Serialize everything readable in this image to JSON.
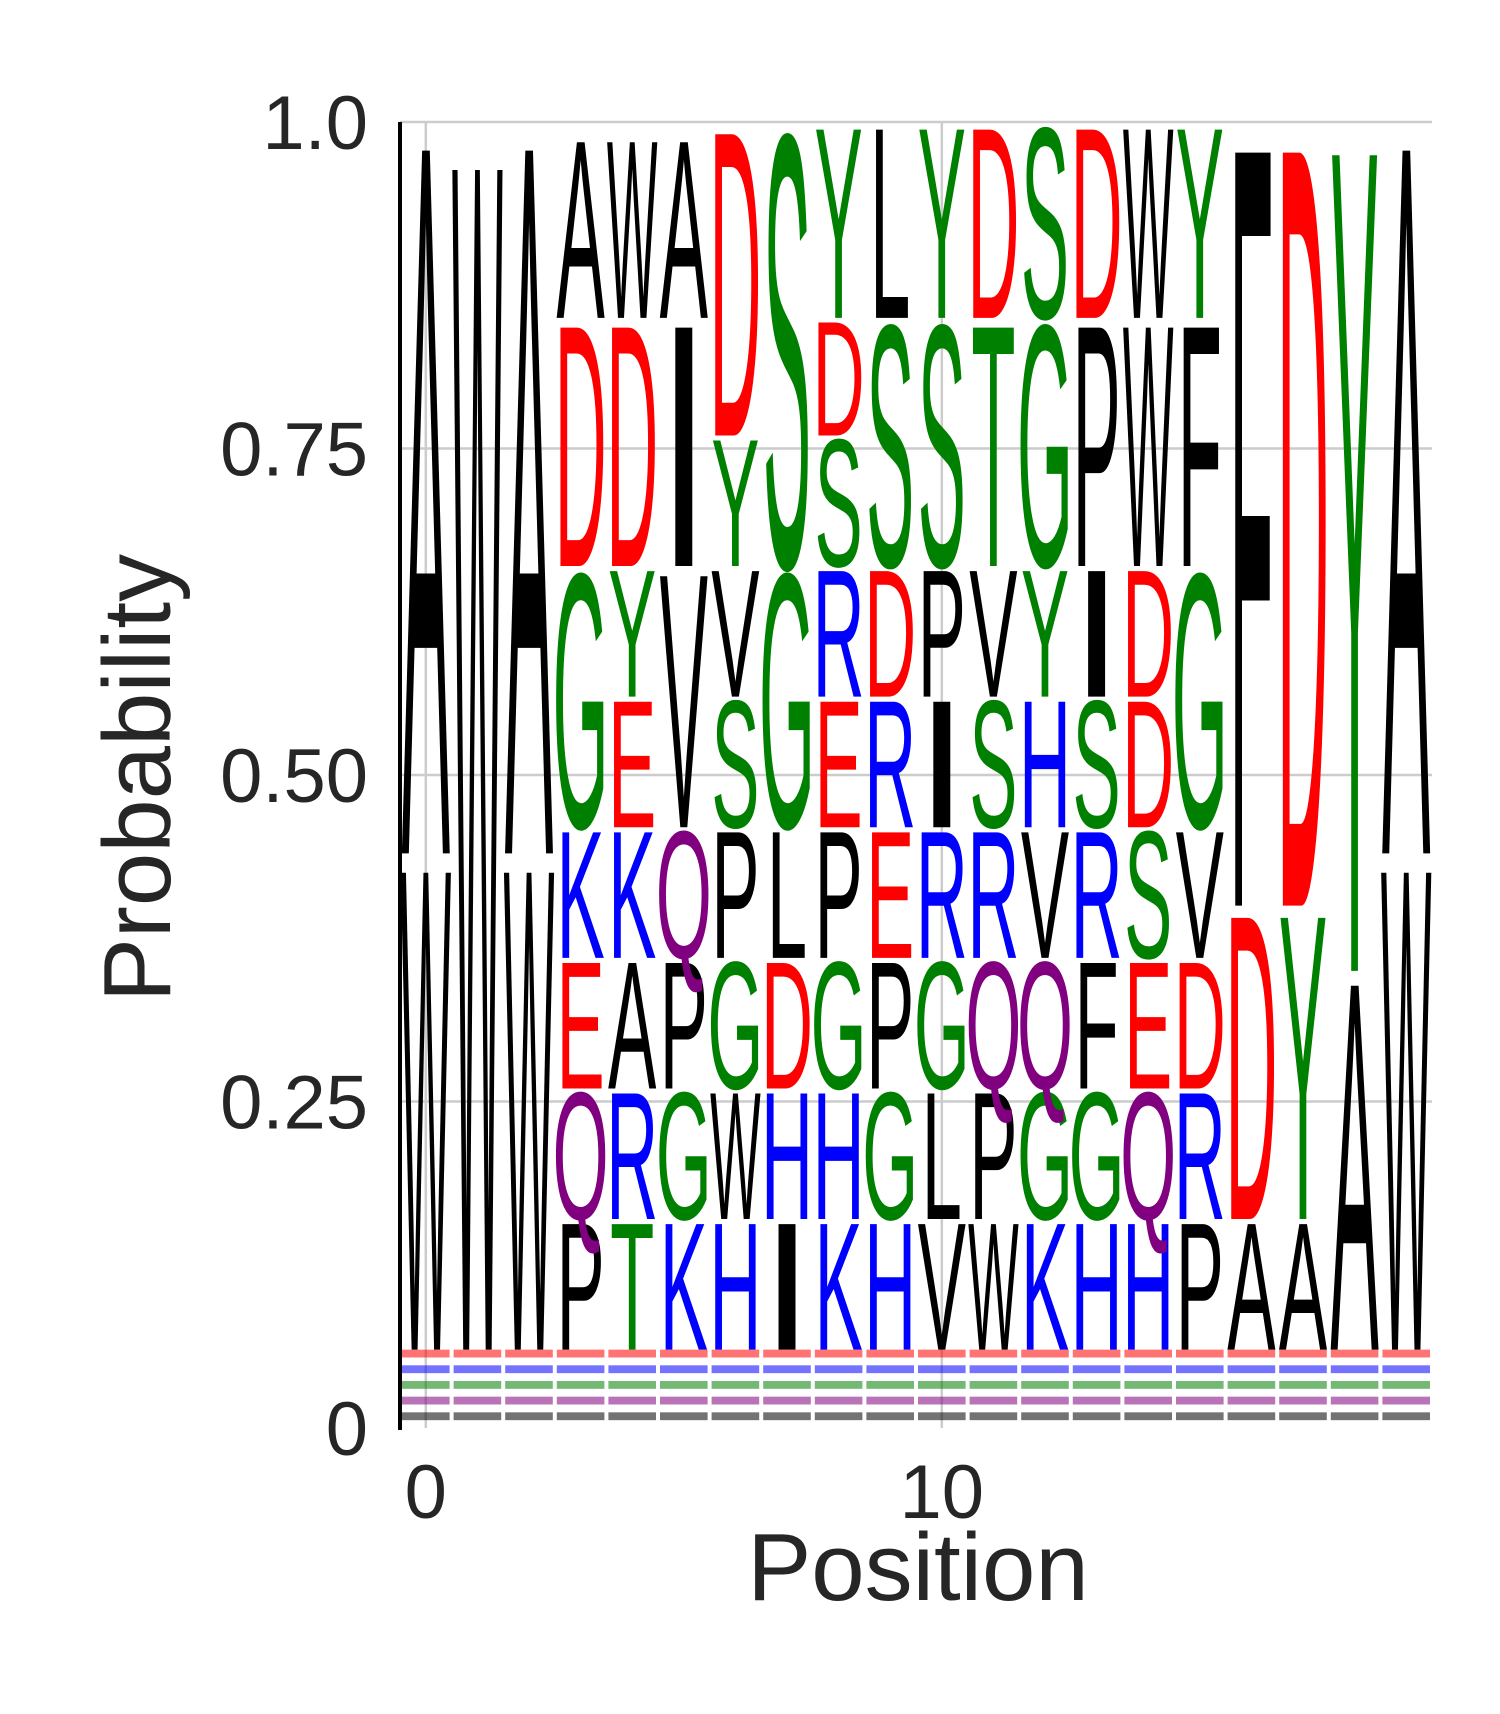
{
  "chart_data": {
    "type": "sequence_logo",
    "xlabel": "Position",
    "ylabel": "Probability",
    "ylim": [
      0,
      1
    ],
    "xlim": [
      -0.5,
      19.5
    ],
    "x_ticks": [
      0,
      10
    ],
    "y_ticks": [
      {
        "value": 0,
        "label": "0"
      },
      {
        "value": 0.25,
        "label": "0.25"
      },
      {
        "value": 0.5,
        "label": "0.50"
      },
      {
        "value": 0.75,
        "label": "0.75"
      },
      {
        "value": 1.0,
        "label": "1.0"
      }
    ],
    "grid": true,
    "colors": {
      "black": "#000000",
      "red": "#ff0000",
      "green": "#008000",
      "blue": "#0000ff",
      "purple": "#800080",
      "grid": "#cccccc",
      "axis": "#000000"
    },
    "positions": [
      {
        "x": 0,
        "stack": [
          [
            "W",
            0.38,
            "black"
          ],
          [
            "A",
            0.56,
            "black"
          ]
        ]
      },
      {
        "x": 1,
        "stack": [
          [
            "W",
            0.94,
            "black"
          ]
        ]
      },
      {
        "x": 2,
        "stack": [
          [
            "W",
            0.38,
            "black"
          ],
          [
            "A",
            0.56,
            "black"
          ]
        ]
      },
      {
        "x": 3,
        "stack": [
          [
            "P",
            0.1,
            "black"
          ],
          [
            "Q",
            0.1,
            "purple"
          ],
          [
            "E",
            0.1,
            "red"
          ],
          [
            "K",
            0.1,
            "blue"
          ],
          [
            "G",
            0.2,
            "green"
          ],
          [
            "D",
            0.19,
            "red"
          ],
          [
            "A",
            0.14,
            "black"
          ]
        ]
      },
      {
        "x": 4,
        "stack": [
          [
            "T",
            0.1,
            "green"
          ],
          [
            "R",
            0.1,
            "blue"
          ],
          [
            "A",
            0.1,
            "black"
          ],
          [
            "K",
            0.1,
            "blue"
          ],
          [
            "E",
            0.1,
            "red"
          ],
          [
            "Y",
            0.1,
            "green"
          ],
          [
            "D",
            0.19,
            "red"
          ],
          [
            "W",
            0.14,
            "black"
          ]
        ]
      },
      {
        "x": 5,
        "stack": [
          [
            "K",
            0.1,
            "blue"
          ],
          [
            "G",
            0.1,
            "green"
          ],
          [
            "P",
            0.1,
            "black"
          ],
          [
            "Q",
            0.1,
            "purple"
          ],
          [
            "V",
            0.2,
            "black"
          ],
          [
            "I",
            0.19,
            "black"
          ],
          [
            "A",
            0.14,
            "black"
          ]
        ]
      },
      {
        "x": 6,
        "stack": [
          [
            "H",
            0.1,
            "blue"
          ],
          [
            "W",
            0.1,
            "black"
          ],
          [
            "G",
            0.1,
            "green"
          ],
          [
            "P",
            0.1,
            "black"
          ],
          [
            "S",
            0.1,
            "green"
          ],
          [
            "V",
            0.1,
            "black"
          ],
          [
            "Y",
            0.1,
            "green"
          ],
          [
            "D",
            0.24,
            "red"
          ]
        ]
      },
      {
        "x": 7,
        "stack": [
          [
            "I",
            0.1,
            "black"
          ],
          [
            "H",
            0.1,
            "blue"
          ],
          [
            "D",
            0.1,
            "red"
          ],
          [
            "L",
            0.1,
            "black"
          ],
          [
            "G",
            0.2,
            "green"
          ],
          [
            "S",
            0.34,
            "green"
          ]
        ]
      },
      {
        "x": 8,
        "stack": [
          [
            "K",
            0.1,
            "blue"
          ],
          [
            "H",
            0.1,
            "blue"
          ],
          [
            "G",
            0.1,
            "green"
          ],
          [
            "P",
            0.1,
            "black"
          ],
          [
            "E",
            0.1,
            "red"
          ],
          [
            "R",
            0.1,
            "blue"
          ],
          [
            "S",
            0.1,
            "green"
          ],
          [
            "D",
            0.09,
            "red"
          ],
          [
            "Y",
            0.15,
            "green"
          ]
        ]
      },
      {
        "x": 9,
        "stack": [
          [
            "H",
            0.1,
            "blue"
          ],
          [
            "G",
            0.1,
            "green"
          ],
          [
            "P",
            0.1,
            "black"
          ],
          [
            "E",
            0.1,
            "red"
          ],
          [
            "R",
            0.1,
            "blue"
          ],
          [
            "D",
            0.1,
            "red"
          ],
          [
            "S",
            0.19,
            "green"
          ],
          [
            "L",
            0.15,
            "black"
          ]
        ]
      },
      {
        "x": 10,
        "stack": [
          [
            "V",
            0.1,
            "black"
          ],
          [
            "L",
            0.1,
            "black"
          ],
          [
            "G",
            0.1,
            "green"
          ],
          [
            "R",
            0.1,
            "blue"
          ],
          [
            "I",
            0.1,
            "black"
          ],
          [
            "P",
            0.1,
            "black"
          ],
          [
            "S",
            0.19,
            "green"
          ],
          [
            "Y",
            0.15,
            "green"
          ]
        ]
      },
      {
        "x": 11,
        "stack": [
          [
            "W",
            0.1,
            "black"
          ],
          [
            "P",
            0.1,
            "black"
          ],
          [
            "Q",
            0.1,
            "purple"
          ],
          [
            "R",
            0.1,
            "blue"
          ],
          [
            "S",
            0.1,
            "green"
          ],
          [
            "V",
            0.1,
            "black"
          ],
          [
            "T",
            0.19,
            "green"
          ],
          [
            "D",
            0.15,
            "red"
          ]
        ]
      },
      {
        "x": 12,
        "stack": [
          [
            "K",
            0.1,
            "blue"
          ],
          [
            "G",
            0.1,
            "green"
          ],
          [
            "Q",
            0.1,
            "purple"
          ],
          [
            "V",
            0.1,
            "black"
          ],
          [
            "H",
            0.1,
            "blue"
          ],
          [
            "Y",
            0.1,
            "green"
          ],
          [
            "G",
            0.19,
            "green"
          ],
          [
            "S",
            0.15,
            "green"
          ]
        ]
      },
      {
        "x": 13,
        "stack": [
          [
            "H",
            0.1,
            "blue"
          ],
          [
            "G",
            0.1,
            "green"
          ],
          [
            "F",
            0.1,
            "black"
          ],
          [
            "R",
            0.1,
            "blue"
          ],
          [
            "S",
            0.1,
            "green"
          ],
          [
            "I",
            0.1,
            "black"
          ],
          [
            "P",
            0.19,
            "black"
          ],
          [
            "D",
            0.15,
            "red"
          ]
        ]
      },
      {
        "x": 14,
        "stack": [
          [
            "H",
            0.1,
            "blue"
          ],
          [
            "Q",
            0.1,
            "purple"
          ],
          [
            "E",
            0.1,
            "red"
          ],
          [
            "S",
            0.1,
            "green"
          ],
          [
            "D",
            0.1,
            "red"
          ],
          [
            "D",
            0.1,
            "red"
          ],
          [
            "W",
            0.19,
            "black"
          ],
          [
            "W",
            0.15,
            "black"
          ]
        ]
      },
      {
        "x": 15,
        "stack": [
          [
            "P",
            0.1,
            "black"
          ],
          [
            "R",
            0.1,
            "blue"
          ],
          [
            "D",
            0.1,
            "red"
          ],
          [
            "V",
            0.1,
            "black"
          ],
          [
            "G",
            0.2,
            "green"
          ],
          [
            "F",
            0.19,
            "black"
          ],
          [
            "Y",
            0.15,
            "green"
          ]
        ]
      },
      {
        "x": 16,
        "stack": [
          [
            "A",
            0.1,
            "black"
          ],
          [
            "D",
            0.24,
            "red"
          ],
          [
            "F",
            0.6,
            "black"
          ]
        ]
      },
      {
        "x": 17,
        "stack": [
          [
            "A",
            0.1,
            "black"
          ],
          [
            "Y",
            0.24,
            "green"
          ],
          [
            "D",
            0.6,
            "red"
          ]
        ]
      },
      {
        "x": 18,
        "stack": [
          [
            "A",
            0.29,
            "black"
          ],
          [
            "Y",
            0.65,
            "green"
          ]
        ]
      },
      {
        "x": 19,
        "stack": [
          [
            "W",
            0.38,
            "black"
          ],
          [
            "A",
            0.56,
            "black"
          ]
        ]
      }
    ]
  }
}
